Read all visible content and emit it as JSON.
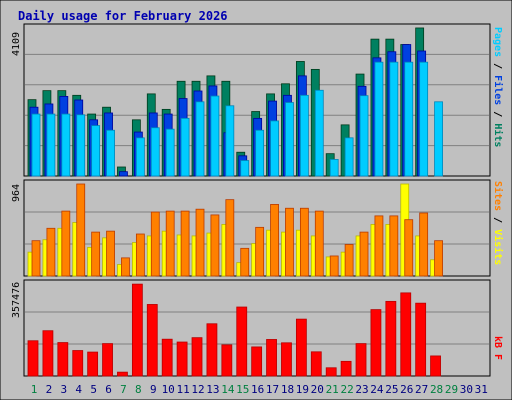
{
  "title": "Daily usage for February 2026",
  "colors": {
    "background": "#C0C0C0",
    "title": "#0000B0",
    "pages": "#00CCFF",
    "files": "#0040E0",
    "hits": "#008060",
    "sites": "#FF8000",
    "visits": "#FFFF00",
    "kbytes": "#FF0000",
    "weekend_label": "#008040",
    "weekday_label": "#000080"
  },
  "chart_data": [
    {
      "type": "bar",
      "name_label": "Pages / Files / Hits",
      "y_max_label": "4109",
      "ymax": 4109,
      "categories": [
        "1",
        "2",
        "3",
        "4",
        "5",
        "6",
        "7",
        "8",
        "9",
        "10",
        "11",
        "12",
        "13",
        "14",
        "15",
        "16",
        "17",
        "18",
        "19",
        "20",
        "21",
        "22",
        "23",
        "24",
        "25",
        "26",
        "27",
        "28",
        "29",
        "30",
        "31"
      ],
      "weekend_days": [
        "1",
        "7",
        "8",
        "14",
        "15",
        "21",
        "22",
        "28",
        "29"
      ],
      "legend": [
        {
          "label": "Pages",
          "color": "#00CCFF"
        },
        {
          "label": "Files",
          "color": "#0040E0"
        },
        {
          "label": "Hits",
          "color": "#008060"
        }
      ],
      "series": [
        {
          "name": "Hits",
          "values": [
            2120,
            2370,
            2370,
            2240,
            1720,
            1910,
            250,
            1560,
            2280,
            1850,
            2630,
            2630,
            2780,
            2630,
            660,
            1790,
            2280,
            2560,
            3180,
            2960,
            620,
            1420,
            2830,
            3800,
            3800,
            3650,
            4110,
            0,
            0,
            0,
            0
          ]
        },
        {
          "name": "Files",
          "values": [
            1910,
            2000,
            2210,
            2110,
            1560,
            1750,
            120,
            1220,
            1750,
            1720,
            2150,
            2360,
            2500,
            1200,
            560,
            1600,
            2080,
            2240,
            2780,
            0,
            0,
            0,
            2490,
            3280,
            3450,
            3650,
            3470,
            0,
            0,
            0,
            0
          ]
        },
        {
          "name": "Pages",
          "values": [
            1720,
            1720,
            1720,
            1700,
            1400,
            1270,
            0,
            1060,
            1340,
            1300,
            1600,
            2060,
            2220,
            1950,
            430,
            1270,
            1530,
            2040,
            2240,
            2380,
            460,
            1060,
            2230,
            3160,
            3160,
            3160,
            3160,
            1520,
            0,
            0,
            0
          ]
        },
        {
          "name": "Pages_extra",
          "values": [
            0,
            0,
            0,
            0,
            0,
            0,
            0,
            0,
            0,
            0,
            0,
            0,
            0,
            0,
            0,
            0,
            0,
            0,
            0,
            0,
            0,
            0,
            0,
            0,
            0,
            0,
            0,
            540,
            0,
            0,
            0
          ]
        }
      ]
    },
    {
      "type": "bar",
      "name_label": "Sites / Visits",
      "y_max_label": "964",
      "ymax": 964,
      "categories": [
        "1",
        "2",
        "3",
        "4",
        "5",
        "6",
        "7",
        "8",
        "9",
        "10",
        "11",
        "12",
        "13",
        "14",
        "15",
        "16",
        "17",
        "18",
        "19",
        "20",
        "21",
        "22",
        "23",
        "24",
        "25",
        "26",
        "27",
        "28",
        "29",
        "30",
        "31"
      ],
      "legend": [
        {
          "label": "Sites",
          "color": "#FF8000"
        },
        {
          "label": "Visits",
          "color": "#FFFF00"
        }
      ],
      "series": [
        {
          "name": "Visits",
          "values": [
            250,
            380,
            500,
            560,
            300,
            400,
            120,
            350,
            420,
            470,
            430,
            420,
            450,
            540,
            140,
            340,
            480,
            460,
            480,
            420,
            200,
            250,
            420,
            540,
            540,
            964,
            420,
            170,
            0,
            0,
            0
          ]
        },
        {
          "name": "Sites",
          "values": [
            370,
            500,
            680,
            964,
            460,
            470,
            190,
            440,
            670,
            680,
            680,
            700,
            640,
            800,
            290,
            510,
            750,
            710,
            710,
            680,
            210,
            330,
            460,
            630,
            630,
            590,
            660,
            370,
            0,
            0,
            0
          ]
        }
      ]
    },
    {
      "type": "bar",
      "name_label": "kB F",
      "y_max_label": "357476",
      "ymax": 357476,
      "categories": [
        "1",
        "2",
        "3",
        "4",
        "5",
        "6",
        "7",
        "8",
        "9",
        "10",
        "11",
        "12",
        "13",
        "14",
        "15",
        "16",
        "17",
        "18",
        "19",
        "20",
        "21",
        "22",
        "23",
        "24",
        "25",
        "26",
        "27",
        "28",
        "29",
        "30",
        "31"
      ],
      "legend": [
        {
          "label": "kB F",
          "color": "#FF0000"
        }
      ],
      "series": [
        {
          "name": "kB F",
          "values": [
            137000,
            176000,
            130000,
            99000,
            93000,
            126000,
            15000,
            357000,
            278000,
            143000,
            132000,
            149000,
            203000,
            121000,
            268000,
            113000,
            142000,
            129000,
            221000,
            94000,
            32000,
            57000,
            126000,
            258000,
            290000,
            323000,
            283000,
            78000,
            0,
            0,
            0
          ]
        }
      ]
    }
  ]
}
